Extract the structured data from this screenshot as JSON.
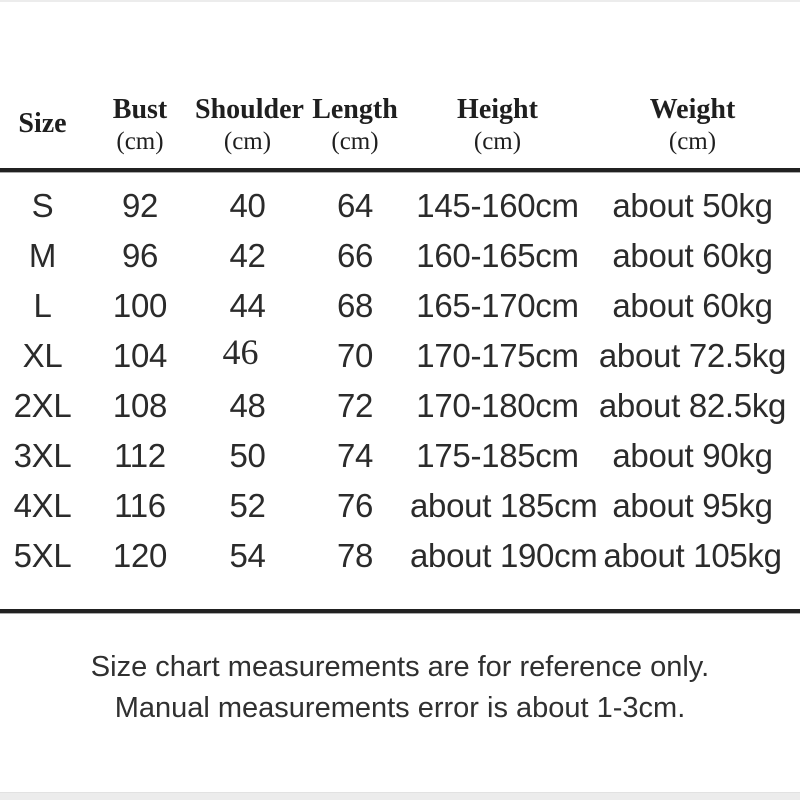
{
  "page": {
    "background": "#ffffff"
  },
  "colors": {
    "text": "#2b2b2b",
    "header_text": "#1f1f1f",
    "rule": "#212121",
    "edge_line": "#ececec"
  },
  "table": {
    "columns": [
      {
        "id": "size",
        "label": "Size",
        "unit": ""
      },
      {
        "id": "bust",
        "label": "Bust",
        "unit": "(cm)"
      },
      {
        "id": "shoulder",
        "label": "Shoulder",
        "unit": "(cm)"
      },
      {
        "id": "length",
        "label": "Length",
        "unit": "(cm)"
      },
      {
        "id": "height",
        "label": "Height",
        "unit": "(cm)"
      },
      {
        "id": "weight",
        "label": "Weight",
        "unit": "(cm)"
      }
    ],
    "rows": [
      {
        "size": "S",
        "bust": "92",
        "shoulder": "40",
        "length": "64",
        "height": "145-160cm",
        "weight": "about 50kg"
      },
      {
        "size": "M",
        "bust": "96",
        "shoulder": "42",
        "length": "66",
        "height": "160-165cm",
        "weight": "about 60kg"
      },
      {
        "size": "L",
        "bust": "100",
        "shoulder": "44",
        "length": "68",
        "height": "165-170cm",
        "weight": "about 60kg"
      },
      {
        "size": "XL",
        "bust": "104",
        "shoulder": "46",
        "length": "70",
        "height": "170-175cm",
        "weight": "about 72.5kg"
      },
      {
        "size": "2XL",
        "bust": "108",
        "shoulder": "48",
        "length": "72",
        "height": "170-180cm",
        "weight": "about 82.5kg"
      },
      {
        "size": "3XL",
        "bust": "112",
        "shoulder": "50",
        "length": "74",
        "height": "175-185cm",
        "weight": "about 90kg"
      },
      {
        "size": "4XL",
        "bust": "116",
        "shoulder": "52",
        "length": "76",
        "height": "about 185cm",
        "weight": "about 95kg"
      },
      {
        "size": "5XL",
        "bust": "120",
        "shoulder": "54",
        "length": "78",
        "height": "about 190cm",
        "weight": "about 105kg"
      }
    ]
  },
  "footer": {
    "line1": "Size chart measurements are for reference only.",
    "line2": "Manual measurements error is about 1-3cm."
  }
}
